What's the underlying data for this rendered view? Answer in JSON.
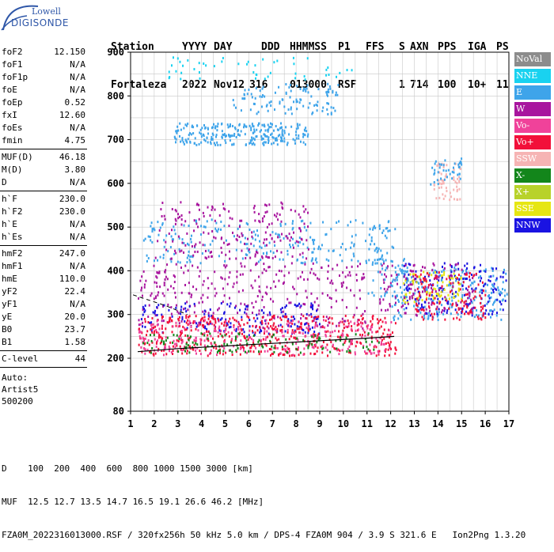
{
  "logo": {
    "line1": "Lowell",
    "line2": "DIGISONDE"
  },
  "header": {
    "labels": [
      "Station",
      "YYYY",
      "DAY",
      "DDD",
      "HHMMSS",
      "P1",
      "FFS",
      "S",
      "AXN",
      "PPS",
      "IGA",
      "PS"
    ],
    "values": [
      "Fortaleza",
      "2022",
      "Nov12",
      "316",
      "013000",
      "RSF",
      "",
      "1",
      "714",
      "100",
      "10+",
      "11"
    ]
  },
  "params": {
    "group1": [
      {
        "k": "foF2",
        "v": "12.150"
      },
      {
        "k": "foF1",
        "v": "N/A"
      },
      {
        "k": "foF1p",
        "v": "N/A"
      },
      {
        "k": "foE",
        "v": "N/A"
      },
      {
        "k": "foEp",
        "v": "0.52"
      },
      {
        "k": "fxI",
        "v": "12.60"
      },
      {
        "k": "foEs",
        "v": "N/A"
      },
      {
        "k": "fmin",
        "v": "4.75"
      }
    ],
    "group2": [
      {
        "k": "MUF(D)",
        "v": "46.18"
      },
      {
        "k": "M(D)",
        "v": "3.80"
      },
      {
        "k": "D",
        "v": "N/A"
      }
    ],
    "group3": [
      {
        "k": "h`F",
        "v": "230.0"
      },
      {
        "k": "h`F2",
        "v": "230.0"
      },
      {
        "k": "h`E",
        "v": "N/A"
      },
      {
        "k": "h`Es",
        "v": "N/A"
      }
    ],
    "group4": [
      {
        "k": "hmF2",
        "v": "247.0"
      },
      {
        "k": "hmF1",
        "v": "N/A"
      },
      {
        "k": "hmE",
        "v": "110.0"
      },
      {
        "k": "yF2",
        "v": "22.4"
      },
      {
        "k": "yF1",
        "v": "N/A"
      },
      {
        "k": "yE",
        "v": "20.0"
      },
      {
        "k": "B0",
        "v": "23.7"
      },
      {
        "k": "B1",
        "v": "1.58"
      }
    ],
    "group5": [
      {
        "k": "C-level",
        "v": "44"
      }
    ],
    "auto": [
      "Auto:",
      "Artist5",
      "500200"
    ]
  },
  "legend": [
    {
      "label": "NoVal",
      "color": "#8c8c8c"
    },
    {
      "label": "NNE",
      "color": "#19d2f0"
    },
    {
      "label": "E",
      "color": "#3ea4ea"
    },
    {
      "label": "W",
      "color": "#a8159e"
    },
    {
      "label": "Vo-",
      "color": "#f0429a"
    },
    {
      "label": "Vo+",
      "color": "#f2103a"
    },
    {
      "label": "SSW",
      "color": "#f6b4b4"
    },
    {
      "label": "X-",
      "color": "#13861b"
    },
    {
      "label": "X+",
      "color": "#b8d22a"
    },
    {
      "label": "SSE",
      "color": "#e6e613"
    },
    {
      "label": "NNW",
      "color": "#1a13e2"
    }
  ],
  "chart_data": {
    "type": "scatter",
    "xlim": [
      1,
      17
    ],
    "ylim": [
      80,
      900
    ],
    "x_ticks": [
      1,
      2,
      3,
      4,
      5,
      6,
      7,
      8,
      9,
      10,
      11,
      12,
      13,
      14,
      15,
      16,
      17
    ],
    "y_ticks": [
      80,
      200,
      300,
      400,
      500,
      600,
      700,
      800,
      900
    ],
    "grid": true,
    "trace_F": [
      [
        1.3,
        215
      ],
      [
        3,
        222
      ],
      [
        5,
        228
      ],
      [
        7,
        234
      ],
      [
        9,
        240
      ],
      [
        11,
        246
      ],
      [
        12.15,
        250
      ]
    ],
    "trace_hm_dashed": [
      [
        1.1,
        345
      ],
      [
        2.5,
        320
      ],
      [
        3.4,
        300
      ]
    ],
    "clusters": [
      {
        "cat": "E",
        "x": [
          2.8,
          8.5
        ],
        "y": [
          690,
          740
        ],
        "n": 260
      },
      {
        "cat": "E",
        "x": [
          5.3,
          9.8
        ],
        "y": [
          760,
          830
        ],
        "n": 110
      },
      {
        "cat": "NNE",
        "x": [
          2.5,
          10.5
        ],
        "y": [
          840,
          895
        ],
        "n": 50
      },
      {
        "cat": "E",
        "x": [
          1.5,
          12.2
        ],
        "y": [
          420,
          520
        ],
        "n": 260
      },
      {
        "cat": "W",
        "x": [
          2.0,
          8.5
        ],
        "y": [
          430,
          560
        ],
        "n": 200
      },
      {
        "cat": "W",
        "x": [
          1.3,
          11.0
        ],
        "y": [
          270,
          420
        ],
        "n": 320
      },
      {
        "cat": "NNW",
        "x": [
          1.3,
          9.0
        ],
        "y": [
          255,
          330
        ],
        "n": 160
      },
      {
        "cat": "Vo+",
        "x": [
          1.3,
          12.2
        ],
        "y": [
          208,
          300
        ],
        "n": 500
      },
      {
        "cat": "Vo-",
        "x": [
          1.3,
          12.0
        ],
        "y": [
          210,
          290
        ],
        "n": 250
      },
      {
        "cat": "X-",
        "x": [
          1.5,
          11.5
        ],
        "y": [
          215,
          260
        ],
        "n": 120
      },
      {
        "cat": "E",
        "x": [
          12.0,
          16.9
        ],
        "y": [
          290,
          410
        ],
        "n": 220
      },
      {
        "cat": "NNW",
        "x": [
          12.5,
          16.9
        ],
        "y": [
          300,
          420
        ],
        "n": 160
      },
      {
        "cat": "SSE",
        "x": [
          12.5,
          15.0
        ],
        "y": [
          330,
          400
        ],
        "n": 90
      },
      {
        "cat": "W",
        "x": [
          11.5,
          15.5
        ],
        "y": [
          300,
          420
        ],
        "n": 130
      },
      {
        "cat": "SSW",
        "x": [
          13.8,
          15.0
        ],
        "y": [
          560,
          650
        ],
        "n": 60
      },
      {
        "cat": "E",
        "x": [
          13.5,
          15.0
        ],
        "y": [
          600,
          660
        ],
        "n": 40
      },
      {
        "cat": "Vo+",
        "x": [
          13.0,
          16.0
        ],
        "y": [
          290,
          400
        ],
        "n": 120
      },
      {
        "cat": "E",
        "x": [
          11.0,
          12.8
        ],
        "y": [
          340,
          430
        ],
        "n": 50
      }
    ]
  },
  "footer": {
    "line1": "D    100  200  400  600  800 1000 1500 3000 [km]",
    "line2": "MUF  12.5 12.7 13.5 14.7 16.5 19.1 26.6 46.2 [MHz]",
    "line3": "FZA0M_2022316013000.RSF / 320fx256h 50 kHz 5.0 km / DPS-4 FZA0M 904 / 3.9 S 321.6 E   Ion2Png 1.3.20"
  }
}
